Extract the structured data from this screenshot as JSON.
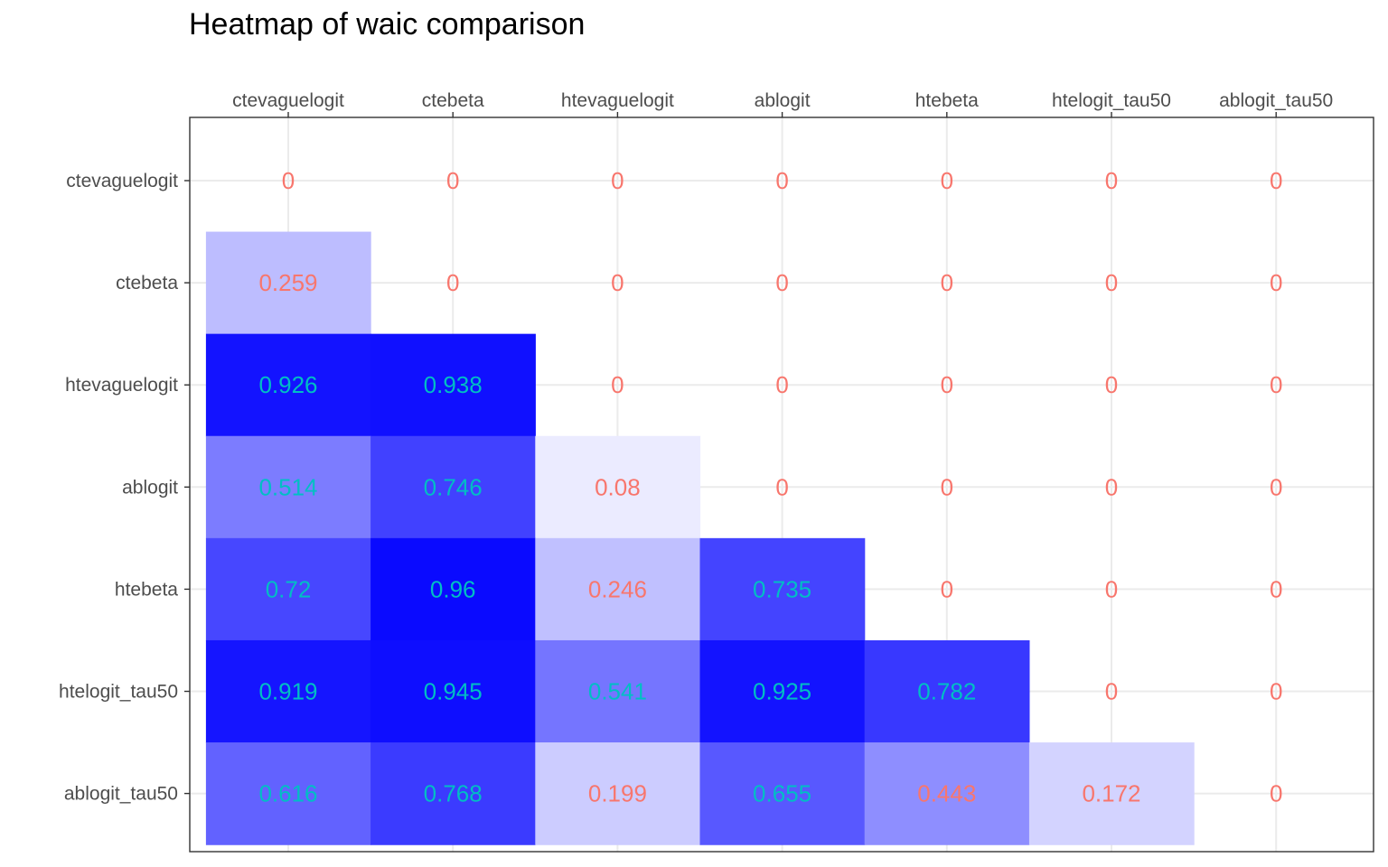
{
  "chart_data": {
    "type": "heatmap",
    "title": "Heatmap of waic comparison",
    "xlabel": "",
    "ylabel": "",
    "x_axis_position": "top",
    "grid": true,
    "legend": "none",
    "categories": [
      "ctevaguelogit",
      "ctebeta",
      "htevaguelogit",
      "ablogit",
      "htebeta",
      "htelogit_tau50",
      "ablogit_tau50"
    ],
    "rows": [
      "ctevaguelogit",
      "ctebeta",
      "htevaguelogit",
      "ablogit",
      "htebeta",
      "htelogit_tau50",
      "ablogit_tau50"
    ],
    "values": [
      [
        0,
        0,
        0,
        0,
        0,
        0,
        0
      ],
      [
        0.259,
        0,
        0,
        0,
        0,
        0,
        0
      ],
      [
        0.926,
        0.938,
        0,
        0,
        0,
        0,
        0
      ],
      [
        0.514,
        0.746,
        0.08,
        0,
        0,
        0,
        0
      ],
      [
        0.72,
        0.96,
        0.246,
        0.735,
        0,
        0,
        0
      ],
      [
        0.919,
        0.945,
        0.541,
        0.925,
        0.782,
        0,
        0
      ],
      [
        0.616,
        0.768,
        0.199,
        0.655,
        0.443,
        0.172,
        0
      ]
    ],
    "fill_low_color": "#ffffff",
    "fill_high_color": "#0000ff",
    "label_color_low": "#f8766d",
    "label_color_high": "#00bfc4",
    "label_threshold": 0.5
  }
}
